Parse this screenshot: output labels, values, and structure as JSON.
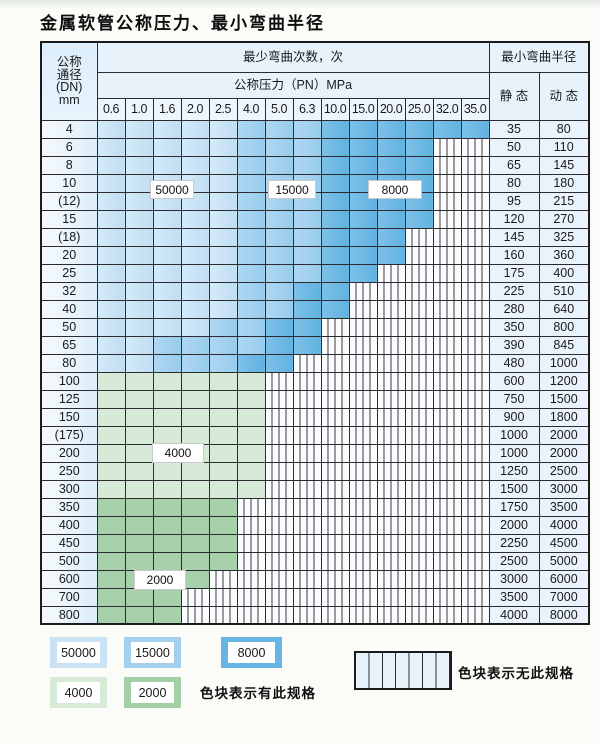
{
  "page": {
    "title": "金属软管公称压力、最小弯曲半径"
  },
  "table": {
    "corner_header_lines": [
      "公称",
      "通径",
      "(DN)",
      "mm"
    ],
    "cycles_header": "最少弯曲次数，次",
    "pressure_header": "公称压力（PN）MPa",
    "pressure_values": [
      "0.6",
      "1.0",
      "1.6",
      "2.0",
      "2.5",
      "4.0",
      "5.0",
      "6.3",
      "10.0",
      "15.0",
      "20.0",
      "25.0",
      "32.0",
      "35.0"
    ],
    "radius_header": "最小弯曲半径",
    "static_header": "静 态",
    "dynamic_header": "动 态",
    "cell_codes": {
      "A": "50000",
      "B": "15000",
      "C": "8000",
      "D": "4000",
      "E": "2000",
      "N": "无此规格"
    },
    "rows": [
      {
        "dn": "4",
        "cells": "AAAAABBBCCCCCC",
        "static": "35",
        "dynamic": "80"
      },
      {
        "dn": "6",
        "cells": "AAAAABBBCCCCNN",
        "static": "50",
        "dynamic": "110"
      },
      {
        "dn": "8",
        "cells": "AAAAABBBCCCCNN",
        "static": "65",
        "dynamic": "145"
      },
      {
        "dn": "10",
        "cells": "AAAAABBBCCCCNN",
        "static": "80",
        "dynamic": "180"
      },
      {
        "dn": "(12)",
        "cells": "AAAAABBBCCCCNN",
        "static": "95",
        "dynamic": "215"
      },
      {
        "dn": "15",
        "cells": "AAAAABBBCCCCNN",
        "static": "120",
        "dynamic": "270"
      },
      {
        "dn": "(18)",
        "cells": "AAAAABBBCCCNNN",
        "static": "145",
        "dynamic": "325"
      },
      {
        "dn": "20",
        "cells": "AAAAABBBCCCNNN",
        "static": "160",
        "dynamic": "360"
      },
      {
        "dn": "25",
        "cells": "AAAAABBBCCNNNN",
        "static": "175",
        "dynamic": "400"
      },
      {
        "dn": "32",
        "cells": "AAAAABBCCNNNNN",
        "static": "225",
        "dynamic": "510"
      },
      {
        "dn": "40",
        "cells": "AAAAABBCCNNNNN",
        "static": "280",
        "dynamic": "640"
      },
      {
        "dn": "50",
        "cells": "AAAABBCCNNNNNN",
        "static": "350",
        "dynamic": "800"
      },
      {
        "dn": "65",
        "cells": "AABBBBCCNNNNNN",
        "static": "390",
        "dynamic": "845"
      },
      {
        "dn": "80",
        "cells": "AABBBCCNNNNNNN",
        "static": "480",
        "dynamic": "1000"
      },
      {
        "dn": "100",
        "cells": "DDDDDDNNNNNNNN",
        "static": "600",
        "dynamic": "1200"
      },
      {
        "dn": "125",
        "cells": "DDDDDDNNNNNNNN",
        "static": "750",
        "dynamic": "1500"
      },
      {
        "dn": "150",
        "cells": "DDDDDDNNNNNNNN",
        "static": "900",
        "dynamic": "1800"
      },
      {
        "dn": "(175)",
        "cells": "DDDDDDNNNNNNNN",
        "static": "1000",
        "dynamic": "2000"
      },
      {
        "dn": "200",
        "cells": "DDDDDDNNNNNNNN",
        "static": "1000",
        "dynamic": "2000"
      },
      {
        "dn": "250",
        "cells": "DDDDDDNNNNNNNN",
        "static": "1250",
        "dynamic": "2500"
      },
      {
        "dn": "300",
        "cells": "DDDDDDNNNNNNNN",
        "static": "1500",
        "dynamic": "3000"
      },
      {
        "dn": "350",
        "cells": "EEEEENNNNNNNNN",
        "static": "1750",
        "dynamic": "3500"
      },
      {
        "dn": "400",
        "cells": "EEEEENNNNNNNNN",
        "static": "2000",
        "dynamic": "4000"
      },
      {
        "dn": "450",
        "cells": "EEEEENNNNNNNNN",
        "static": "2250",
        "dynamic": "4500"
      },
      {
        "dn": "500",
        "cells": "EEEEENNNNNNNNN",
        "static": "2500",
        "dynamic": "5000"
      },
      {
        "dn": "600",
        "cells": "EEEENNNNNNNNNN",
        "static": "3000",
        "dynamic": "6000"
      },
      {
        "dn": "700",
        "cells": "EEENNNNNNNNNNN",
        "static": "3500",
        "dynamic": "7000"
      },
      {
        "dn": "800",
        "cells": "EEENNNNNNNNNNN",
        "static": "4000",
        "dynamic": "8000"
      }
    ]
  },
  "legend": {
    "swatches": [
      {
        "label": "50000",
        "color": "#c9e3f5"
      },
      {
        "label": "15000",
        "color": "#a3d0ee"
      },
      {
        "label": "8000",
        "color": "#66b5e3"
      },
      {
        "label": "4000",
        "color": "#d7e9d7"
      },
      {
        "label": "2000",
        "color": "#a3cfa6"
      }
    ],
    "has_spec_text": "色块表示有此规格",
    "no_spec_text": "色块表示无此规格"
  },
  "colors": {
    "cycles_50000": "#c9e3f5",
    "cycles_15000": "#a3d0ee",
    "cycles_8000": "#66b5e3",
    "cycles_4000": "#d7e9d7",
    "cycles_2000": "#a3cfa6",
    "header_bg": "#e7f2fb",
    "border": "#2c2c30"
  }
}
